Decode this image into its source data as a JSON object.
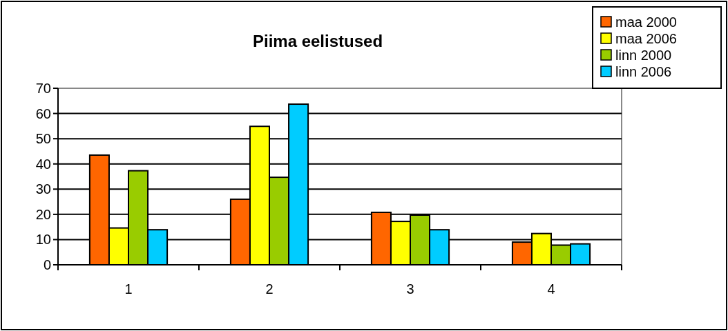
{
  "chart_data": {
    "type": "bar",
    "title": "Piima eelistused",
    "categories": [
      "1",
      "2",
      "3",
      "4"
    ],
    "series": [
      {
        "name": "maa 2000",
        "color": "#ff6600",
        "values": [
          43.5,
          26,
          20.8,
          9
        ]
      },
      {
        "name": "maa 2006",
        "color": "#ffff00",
        "values": [
          14.6,
          54.9,
          17.2,
          12.4
        ]
      },
      {
        "name": "linn 2000",
        "color": "#99cc00",
        "values": [
          37.3,
          34.7,
          19.7,
          7.8
        ]
      },
      {
        "name": "linn 2006",
        "color": "#00ccff",
        "values": [
          13.9,
          63.7,
          13.9,
          8.3
        ]
      }
    ],
    "ylim": [
      0,
      70
    ],
    "yticks": [
      0,
      10,
      20,
      30,
      40,
      50,
      60,
      70
    ],
    "grid": "y",
    "legend": "top right"
  }
}
